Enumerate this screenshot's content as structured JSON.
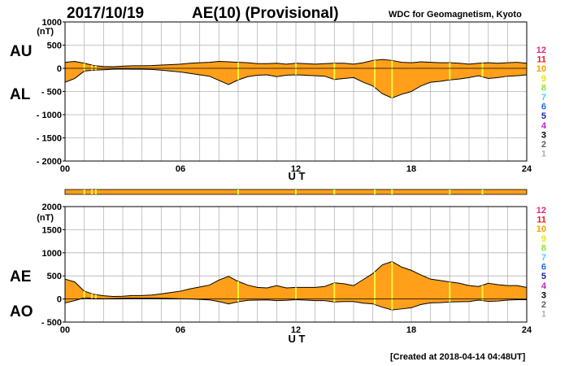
{
  "header": {
    "date": "2017/10/19",
    "title": "AE(10) (Provisional)",
    "source": "WDC for Geomagnetism, Kyoto"
  },
  "footer": {
    "created": "[Created at 2018-04-14 04:48UT]"
  },
  "station_count_legend": [
    {
      "label": "12",
      "color": "#e0287a"
    },
    {
      "label": "11",
      "color": "#e02020"
    },
    {
      "label": "10",
      "color": "#f0a000"
    },
    {
      "label": "9",
      "color": "#e8e800"
    },
    {
      "label": "8",
      "color": "#90e040"
    },
    {
      "label": "7",
      "color": "#40d8e8"
    },
    {
      "label": "6",
      "color": "#2070e0"
    },
    {
      "label": "5",
      "color": "#2020a0"
    },
    {
      "label": "4",
      "color": "#c020c0"
    },
    {
      "label": "3",
      "color": "#000000"
    },
    {
      "label": "2",
      "color": "#606060"
    },
    {
      "label": "1",
      "color": "#b0b0b0"
    }
  ],
  "fill_color": "#ff9f1a",
  "marker_color": "#f5f53a",
  "marker_hours": [
    1.0,
    1.4,
    1.6,
    9.0,
    12.0,
    14.0,
    16.1,
    17.0,
    20.0,
    21.7
  ],
  "chart_data": [
    {
      "type": "area",
      "panel": "AU/AL",
      "series": [
        {
          "name": "AU"
        },
        {
          "name": "AL"
        }
      ],
      "ylabel": "(nT)",
      "side_labels": [
        "AU",
        "AL"
      ],
      "xlabel": "U T",
      "x_ticks": [
        "00",
        "06",
        "12",
        "18",
        "24"
      ],
      "xlim": [
        0,
        24
      ],
      "y_ticks": [
        "1000",
        "500",
        "0",
        "- 500",
        "- 1000",
        "- 1500",
        "- 2000"
      ],
      "ylim": [
        -2000,
        1000
      ],
      "grid": true,
      "x": [
        0,
        0.5,
        1,
        1.5,
        2,
        2.5,
        3,
        3.5,
        4,
        4.5,
        5,
        5.5,
        6,
        6.5,
        7,
        7.5,
        8,
        8.5,
        9,
        9.5,
        10,
        10.5,
        11,
        11.5,
        12,
        12.5,
        13,
        13.5,
        14,
        14.5,
        15,
        15.5,
        16,
        16.5,
        17,
        17.5,
        18,
        18.5,
        19,
        19.5,
        20,
        20.5,
        21,
        21.5,
        22,
        22.5,
        23,
        23.5,
        24
      ],
      "au": [
        130,
        150,
        110,
        60,
        40,
        35,
        45,
        55,
        55,
        60,
        70,
        80,
        90,
        110,
        120,
        130,
        150,
        140,
        130,
        120,
        100,
        100,
        110,
        90,
        110,
        100,
        90,
        100,
        110,
        110,
        90,
        120,
        170,
        190,
        170,
        130,
        120,
        140,
        130,
        120,
        120,
        110,
        90,
        110,
        120,
        110,
        120,
        130,
        110
      ],
      "al": [
        -300,
        -220,
        -60,
        -40,
        -30,
        -20,
        -15,
        -20,
        -20,
        -25,
        -40,
        -60,
        -80,
        -110,
        -140,
        -170,
        -260,
        -350,
        -250,
        -180,
        -150,
        -140,
        -180,
        -150,
        -140,
        -150,
        -160,
        -170,
        -240,
        -220,
        -200,
        -300,
        -380,
        -550,
        -640,
        -560,
        -500,
        -380,
        -300,
        -280,
        -250,
        -230,
        -200,
        -160,
        -220,
        -200,
        -170,
        -160,
        -140
      ]
    },
    {
      "type": "area",
      "panel": "AE/AO",
      "series": [
        {
          "name": "AE"
        },
        {
          "name": "AO"
        }
      ],
      "ylabel": "(nT)",
      "side_labels": [
        "AE",
        "AO"
      ],
      "xlabel": "U T",
      "x_ticks": [
        "00",
        "06",
        "12",
        "18",
        "24"
      ],
      "xlim": [
        0,
        24
      ],
      "y_ticks": [
        "2000",
        "1500",
        "1000",
        "500",
        "0",
        "- 500"
      ],
      "ylim": [
        -500,
        2000
      ],
      "grid": true,
      "x": [
        0,
        0.5,
        1,
        1.5,
        2,
        2.5,
        3,
        3.5,
        4,
        4.5,
        5,
        5.5,
        6,
        6.5,
        7,
        7.5,
        8,
        8.5,
        9,
        9.5,
        10,
        10.5,
        11,
        11.5,
        12,
        12.5,
        13,
        13.5,
        14,
        14.5,
        15,
        15.5,
        16,
        16.5,
        17,
        17.5,
        18,
        18.5,
        19,
        19.5,
        20,
        20.5,
        21,
        21.5,
        22,
        22.5,
        23,
        23.5,
        24
      ],
      "ae": [
        430,
        370,
        170,
        100,
        70,
        55,
        60,
        75,
        75,
        85,
        110,
        140,
        170,
        220,
        260,
        300,
        410,
        490,
        380,
        300,
        250,
        240,
        290,
        240,
        250,
        250,
        250,
        270,
        350,
        330,
        290,
        420,
        550,
        740,
        810,
        690,
        620,
        520,
        430,
        400,
        370,
        340,
        290,
        270,
        340,
        310,
        290,
        290,
        250
      ],
      "ao": [
        -85,
        -35,
        25,
        10,
        5,
        8,
        15,
        18,
        18,
        18,
        15,
        10,
        5,
        0,
        -10,
        -20,
        -55,
        -105,
        -60,
        -30,
        -25,
        -20,
        -35,
        -30,
        -15,
        -25,
        -35,
        -35,
        -65,
        -55,
        -55,
        -90,
        -105,
        -180,
        -235,
        -215,
        -190,
        -120,
        -85,
        -80,
        -65,
        -60,
        -55,
        -25,
        -50,
        -45,
        -25,
        -15,
        -15
      ]
    }
  ]
}
